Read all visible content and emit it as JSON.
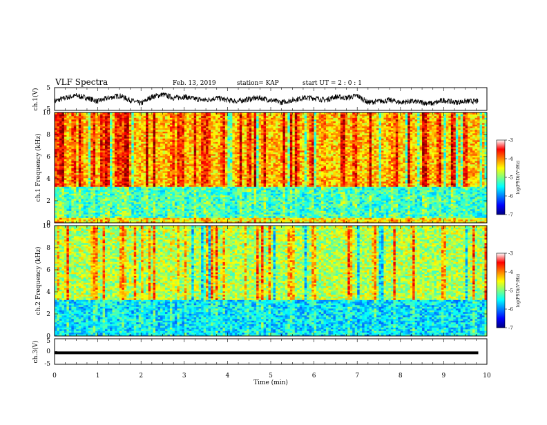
{
  "header": {
    "title": "VLF Spectra",
    "date": "Feb. 13, 2019",
    "station": "station= KAP",
    "start": "start  UT =   2 : 0  : 1"
  },
  "chart_data": [
    {
      "type": "line",
      "title": "",
      "ylabel": "ch.1(V)",
      "xlim": [
        0,
        10
      ],
      "ylim": [
        -5,
        5
      ],
      "yticks": [
        "5",
        "-5"
      ],
      "series": [
        {
          "x": [
            0,
            0.25,
            0.5,
            0.75,
            1.0,
            1.25,
            1.5,
            1.75,
            2.0,
            2.25,
            2.5,
            2.75,
            3.0,
            3.25,
            3.5,
            3.75,
            4.0,
            4.25,
            4.5,
            4.75,
            5.0,
            5.25,
            5.5,
            5.75,
            6.0,
            6.25,
            6.5,
            6.75,
            7.0,
            7.25,
            7.5,
            7.75,
            8.0,
            8.25,
            8.5,
            8.75,
            9.0,
            9.25,
            9.5,
            9.75
          ],
          "y": [
            -1,
            0.5,
            1.5,
            0.5,
            -1,
            0.5,
            1.5,
            -0.5,
            -2,
            1,
            2,
            0.5,
            1,
            0,
            -0.5,
            0.5,
            -0.5,
            -1,
            0,
            0.5,
            -0.5,
            -1.5,
            -0.5,
            0.5,
            0.5,
            -0.5,
            1,
            0.5,
            1.5,
            -1.5,
            -1,
            -0.5,
            -1.5,
            -1,
            -1.5,
            -2,
            -0.5,
            -1.5,
            -1,
            -1
          ]
        }
      ]
    },
    {
      "type": "heatmap",
      "title": "",
      "ylabel": "ch.1 Frequency (kHz)",
      "xlim": [
        0,
        10
      ],
      "ylim": [
        0,
        10
      ],
      "yticks": [
        0,
        2,
        4,
        6,
        8,
        10
      ],
      "colorbar": {
        "label": "log(PSD)(V²/Hz)",
        "range": [
          -7,
          -3
        ],
        "ticks": [
          -3,
          -4,
          -5,
          -6,
          -7
        ]
      },
      "bands": [
        {
          "from": 0,
          "to": 0.4,
          "level": -4.5
        },
        {
          "from": 0.4,
          "to": 3.3,
          "level": -5.3
        },
        {
          "from": 3.3,
          "to": 10,
          "level": -4.3
        }
      ],
      "burst_times": [
        0.05,
        0.2,
        0.45,
        0.6,
        0.9,
        1.2,
        1.55,
        1.7,
        2.1,
        2.3,
        2.65,
        2.95,
        3.45,
        3.55,
        3.9,
        4.3,
        4.5,
        4.85,
        5.3,
        5.6,
        5.95,
        6.2,
        6.7,
        6.95,
        7.3,
        7.8,
        7.9,
        8.2,
        8.6,
        8.9,
        9.2,
        9.5
      ]
    },
    {
      "type": "heatmap",
      "title": "",
      "ylabel": "ch.2 Frequency (kHz)",
      "xlim": [
        0,
        10
      ],
      "ylim": [
        0,
        10
      ],
      "yticks": [
        0,
        2,
        4,
        6,
        8,
        10
      ],
      "colorbar": {
        "label": "log(PSD)(V²/Hz)",
        "range": [
          -7,
          -3
        ],
        "ticks": [
          -3,
          -4,
          -5,
          -6,
          -7
        ]
      },
      "bands": [
        {
          "from": 0,
          "to": 3.3,
          "level": -5.6
        },
        {
          "from": 3.3,
          "to": 10,
          "level": -4.8
        }
      ],
      "burst_times": [
        0.3,
        0.9,
        1.6,
        2.0,
        2.7,
        3.5,
        3.65,
        4.45,
        4.7,
        5.5,
        6.0,
        6.8,
        7.4,
        8.3,
        9.0,
        9.7
      ]
    },
    {
      "type": "line",
      "title": "",
      "ylabel": "ch.3(V)",
      "xlabel": "Time (min)",
      "xlim": [
        0,
        10
      ],
      "ylim": [
        -5,
        5
      ],
      "yticks": [
        "5",
        "0",
        "-5"
      ],
      "xticks": [
        0,
        1,
        2,
        3,
        4,
        5,
        6,
        7,
        8,
        9,
        10
      ],
      "series": [
        {
          "x": [
            0,
            9.8
          ],
          "y": [
            -0.5,
            -0.5
          ]
        }
      ]
    }
  ]
}
